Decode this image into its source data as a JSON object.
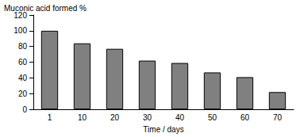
{
  "chart_data": {
    "type": "bar",
    "y_label": "Muconic acid formed %",
    "x_label": "Time / days",
    "categories": [
      "1",
      "10",
      "20",
      "30",
      "40",
      "50",
      "60",
      "70"
    ],
    "values": [
      100,
      84,
      77,
      62,
      59,
      47,
      41,
      22
    ],
    "color": "#808080",
    "ylim": [
      0,
      120
    ],
    "yticks": [
      0,
      20,
      40,
      60,
      80,
      100,
      120
    ],
    "grid": false
  }
}
